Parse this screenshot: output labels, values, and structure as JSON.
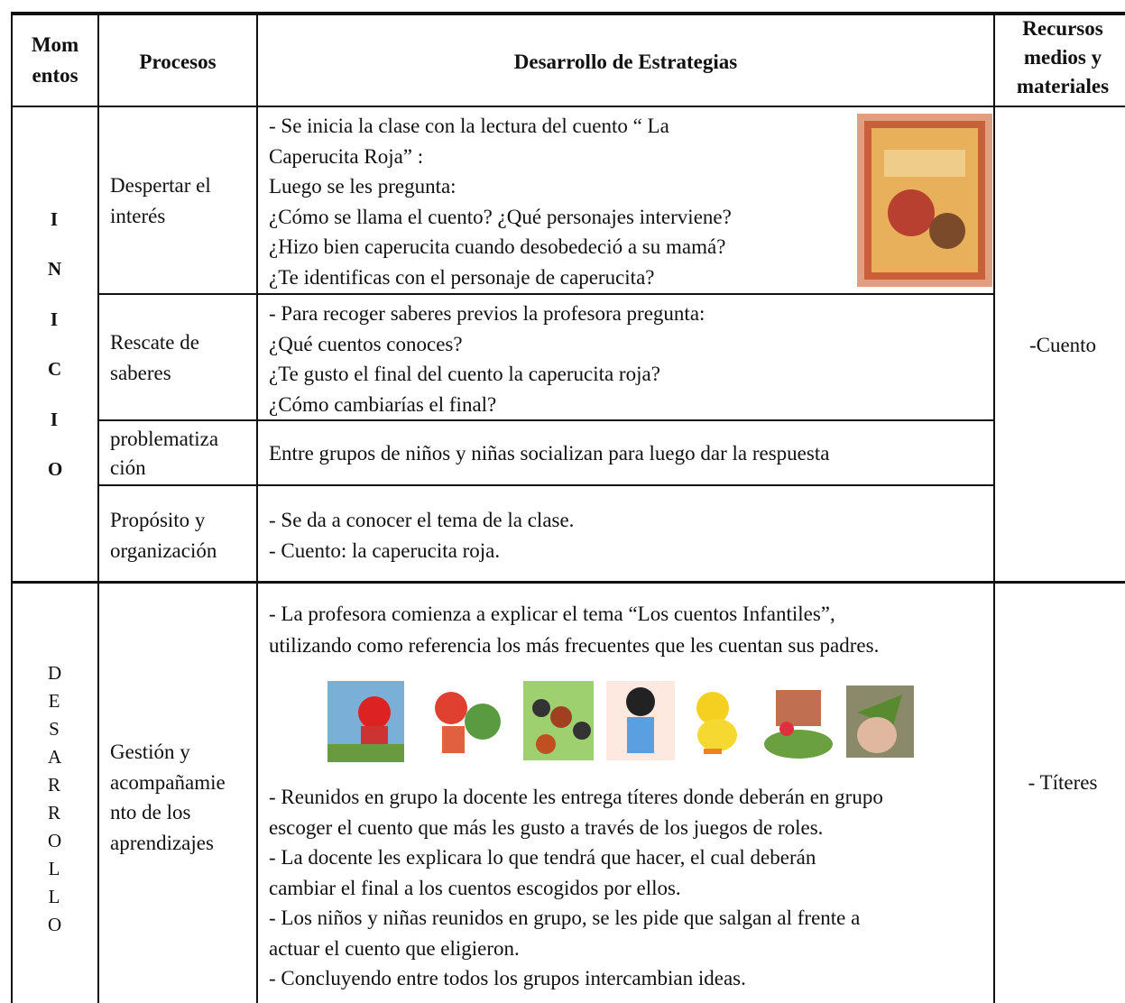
{
  "header": {
    "momentos": [
      "Mom",
      "entos"
    ],
    "procesos": "Procesos",
    "desarrollo": "Desarrollo de Estrategias",
    "recursos": [
      "Recursos",
      "medios y",
      "materiales"
    ]
  },
  "sections": [
    {
      "momento": "INICIO",
      "recurso": "-Cuento",
      "rows": [
        {
          "proceso": [
            "Despertar el",
            "interés"
          ],
          "estrategia": [
            "- Se inicia la clase con la lectura del cuento “ La",
            "Caperucita Roja” :",
            "Luego se les  pregunta:",
            "¿Cómo se llama el cuento? ¿Qué personajes interviene?",
            "¿Hizo bien caperucita cuando desobedeció a su mamá?",
            "¿Te identificas con el personaje de caperucita?"
          ]
        },
        {
          "proceso": [
            "Rescate de",
            "saberes"
          ],
          "estrategia": [
            "- Para recoger saberes previos la profesora pregunta:",
            "¿Qué cuentos conoces?",
            "¿Te gusto el final del cuento la caperucita roja?",
            "¿Cómo cambiarías el final?"
          ]
        },
        {
          "proceso": [
            "problematiza",
            "ción"
          ],
          "estrategia": [
            "Entre grupos de niños y niñas socializan para luego dar la respuesta"
          ]
        },
        {
          "proceso": [
            "Propósito y",
            "organización"
          ],
          "estrategia": [
            "- Se da a conocer el tema de la clase.",
            "- Cuento: la caperucita roja."
          ]
        }
      ]
    },
    {
      "momento": "DESARROLLO",
      "recurso": "- Títeres",
      "rows": [
        {
          "proceso": [
            "Gestión y",
            "acompañamie",
            "nto de los",
            "aprendizajes"
          ],
          "estrategia": [
            "- La profesora comienza a explicar el tema “Los cuentos Infantiles”,",
            "utilizando como referencia los más frecuentes que les cuentan sus padres."
          ],
          "estrategia_cont": [
            "- Reunidos en grupo la docente les entrega títeres donde deberán en grupo",
            "escoger el cuento que más les gusto a través de los juegos de roles.",
            "-  La docente les explicara lo que tendrá que hacer, el cual deberán",
            "cambiar el final a los cuentos escogidos por ellos.",
            "- Los niños y niñas reunidos en grupo, se les pide que salgan al frente a",
            "actuar el cuento que eligieron.",
            "- Concluyendo entre todos los grupos intercambian ideas."
          ]
        }
      ]
    }
  ]
}
